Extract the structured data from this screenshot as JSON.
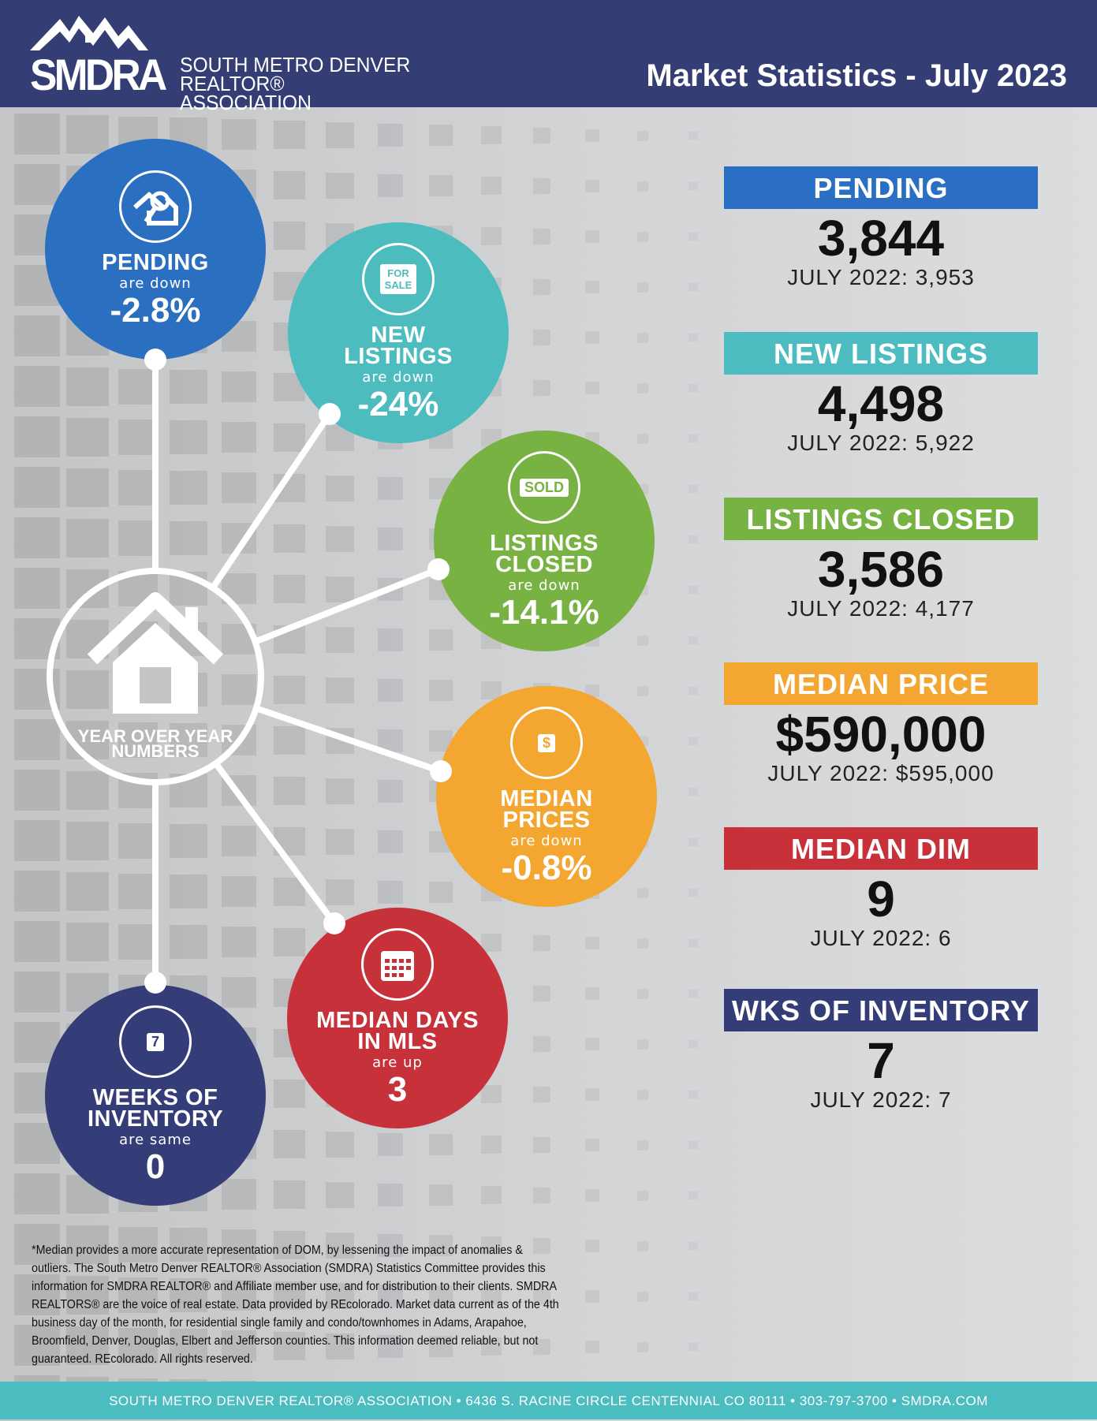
{
  "header": {
    "logo_text": "SMDRA",
    "logo_line1": "SOUTH METRO DENVER",
    "logo_line2": "REALTOR® ASSOCIATION",
    "title": "Market Statistics - July 2023",
    "color": "#343d74"
  },
  "hub": {
    "label_line1": "YEAR OVER YEAR",
    "label_line2": "NUMBERS",
    "icon": "house-icon"
  },
  "circles": [
    {
      "title1": "PENDING",
      "title2": "",
      "sub": "are down",
      "value": "-2.8%",
      "color": "#2a6fc0",
      "icon": "house-search-icon"
    },
    {
      "title1": "NEW",
      "title2": "LISTINGS",
      "sub": "are down",
      "value": "-24%",
      "color": "#4cbcbf",
      "icon": "for-sale-sign-icon",
      "icon_text1": "FOR",
      "icon_text2": "SALE"
    },
    {
      "title1": "LISTINGS",
      "title2": "CLOSED",
      "sub": "are down",
      "value": "-14.1%",
      "color": "#77b243",
      "icon": "sold-sign-icon",
      "icon_text1": "SOLD"
    },
    {
      "title1": "MEDIAN",
      "title2": "PRICES",
      "sub": "are down",
      "value": "-0.8%",
      "color": "#f3a630",
      "icon": "house-dollar-icon",
      "icon_text1": "$"
    },
    {
      "title1": "MEDIAN DAYS",
      "title2": "IN MLS",
      "sub": "are up",
      "value": "3",
      "color": "#c6313a",
      "icon": "calendar-icon"
    },
    {
      "title1": "WEEKS OF",
      "title2": "INVENTORY",
      "sub": "are same",
      "value": "0",
      "color": "#343d78",
      "icon": "calendar-7-icon",
      "icon_text1": "7"
    }
  ],
  "stats": [
    {
      "label": "PENDING",
      "value": "3,844",
      "prev": "JULY 2022: 3,953",
      "color": "#2a6fc4"
    },
    {
      "label": "NEW LISTINGS",
      "value": "4,498",
      "prev": "JULY 2022: 5,922",
      "color": "#4cbcc0"
    },
    {
      "label": "LISTINGS CLOSED",
      "value": "3,586",
      "prev": "JULY 2022: 4,177",
      "color": "#77b343"
    },
    {
      "label": "MEDIAN PRICE",
      "value": "$590,000",
      "prev": "JULY 2022: $595,000",
      "color": "#f3a631"
    },
    {
      "label": "MEDIAN DIM",
      "value": "9",
      "prev": "JULY 2022: 6",
      "color": "#c8313a"
    },
    {
      "label": "WKS OF INVENTORY",
      "value": "7",
      "prev": "JULY 2022: 7",
      "color": "#343d78"
    }
  ],
  "disclaimer": "*Median provides a more accurate representation of DOM, by lessening the impact of anomalies & outliers. The South Metro Denver REALTOR® Association (SMDRA) Statistics Committee provides this information for SMDRA REALTOR® and Affiliate member use, and for distribution to their clients. SMDRA REALTORS® are the voice of real estate. Data provided by REcolorado. Market data current as of the 4th business day of the month, for residential single family and condo/townhomes in Adams, Arapahoe, Broomfield, Denver, Douglas, Elbert and Jefferson counties. This information deemed reliable, but not guaranteed. REcolorado. All rights reserved.",
  "footer": "SOUTH METRO DENVER REALTOR® ASSOCIATION • 6436 S. RACINE CIRCLE CENTENNIAL CO 80111 • 303-797-3700 • SMDRA.COM"
}
